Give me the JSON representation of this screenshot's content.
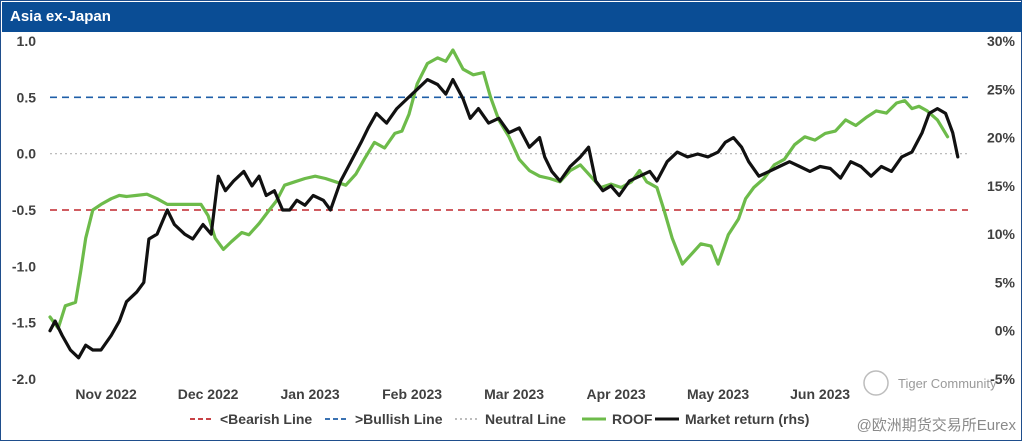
{
  "panel_title": "Asia ex-Japan",
  "watermark": {
    "community": "Tiger Community",
    "source": "@欧洲期货交易所Eurex"
  },
  "colors": {
    "header": "#0a4d95",
    "bearish": "#c0272d",
    "bullish": "#1f5fa8",
    "neutral": "#b4b4b4",
    "roof": "#6dbb4a",
    "market": "#111111"
  },
  "chart_data": {
    "type": "line",
    "title": "Asia ex-Japan",
    "x_range": [
      0,
      8.7
    ],
    "x_ticks": [
      {
        "label": "Nov 2022",
        "pos": 0.55
      },
      {
        "label": "Dec 2022",
        "pos": 1.55
      },
      {
        "label": "Jan 2023",
        "pos": 2.55
      },
      {
        "label": "Feb 2023",
        "pos": 3.55
      },
      {
        "label": "Mar 2023",
        "pos": 4.55
      },
      {
        "label": "Apr 2023",
        "pos": 5.55
      },
      {
        "label": "May 2023",
        "pos": 6.55
      },
      {
        "label": "Jun 2023",
        "pos": 7.55
      }
    ],
    "y_left": {
      "range": [
        -2.0,
        1.0
      ],
      "ticks": [
        "1.0",
        "0.5",
        "0.0",
        "-0.5",
        "-1.0",
        "-1.5",
        "-2.0"
      ],
      "tick_values": [
        1.0,
        0.5,
        0.0,
        -0.5,
        -1.0,
        -1.5,
        -2.0
      ]
    },
    "y_right": {
      "range": [
        -5,
        30
      ],
      "ticks": [
        "30%",
        "25%",
        "20%",
        "15%",
        "10%",
        "5%",
        "0%",
        "-5%"
      ],
      "tick_values": [
        30,
        25,
        20,
        15,
        10,
        5,
        0,
        -5
      ]
    },
    "reference_lines": [
      {
        "name": "<Bearish Line",
        "y": -0.5
      },
      {
        "name": ">Bullish Line",
        "y": 0.5
      },
      {
        "name": "Neutral Line",
        "y": 0.0
      }
    ],
    "series": [
      {
        "name": "ROOF",
        "axis": "left",
        "points": [
          [
            0.0,
            -1.45
          ],
          [
            0.08,
            -1.55
          ],
          [
            0.15,
            -1.35
          ],
          [
            0.25,
            -1.32
          ],
          [
            0.3,
            -1.05
          ],
          [
            0.35,
            -0.75
          ],
          [
            0.42,
            -0.5
          ],
          [
            0.5,
            -0.45
          ],
          [
            0.6,
            -0.4
          ],
          [
            0.68,
            -0.37
          ],
          [
            0.75,
            -0.38
          ],
          [
            0.85,
            -0.37
          ],
          [
            0.95,
            -0.36
          ],
          [
            1.05,
            -0.4
          ],
          [
            1.15,
            -0.45
          ],
          [
            1.25,
            -0.45
          ],
          [
            1.38,
            -0.45
          ],
          [
            1.48,
            -0.45
          ],
          [
            1.55,
            -0.55
          ],
          [
            1.62,
            -0.75
          ],
          [
            1.7,
            -0.85
          ],
          [
            1.78,
            -0.78
          ],
          [
            1.88,
            -0.7
          ],
          [
            1.95,
            -0.72
          ],
          [
            2.05,
            -0.62
          ],
          [
            2.15,
            -0.5
          ],
          [
            2.22,
            -0.42
          ],
          [
            2.3,
            -0.28
          ],
          [
            2.4,
            -0.25
          ],
          [
            2.5,
            -0.22
          ],
          [
            2.6,
            -0.2
          ],
          [
            2.7,
            -0.22
          ],
          [
            2.8,
            -0.25
          ],
          [
            2.9,
            -0.28
          ],
          [
            3.0,
            -0.18
          ],
          [
            3.08,
            -0.05
          ],
          [
            3.18,
            0.1
          ],
          [
            3.28,
            0.05
          ],
          [
            3.38,
            0.18
          ],
          [
            3.45,
            0.2
          ],
          [
            3.52,
            0.35
          ],
          [
            3.6,
            0.62
          ],
          [
            3.7,
            0.8
          ],
          [
            3.8,
            0.85
          ],
          [
            3.88,
            0.82
          ],
          [
            3.95,
            0.92
          ],
          [
            4.05,
            0.75
          ],
          [
            4.15,
            0.7
          ],
          [
            4.25,
            0.72
          ],
          [
            4.32,
            0.5
          ],
          [
            4.4,
            0.3
          ],
          [
            4.5,
            0.15
          ],
          [
            4.6,
            -0.05
          ],
          [
            4.7,
            -0.15
          ],
          [
            4.8,
            -0.2
          ],
          [
            4.9,
            -0.22
          ],
          [
            5.0,
            -0.25
          ],
          [
            5.1,
            -0.15
          ],
          [
            5.2,
            -0.1
          ],
          [
            5.3,
            -0.2
          ],
          [
            5.4,
            -0.3
          ],
          [
            5.5,
            -0.27
          ],
          [
            5.6,
            -0.3
          ],
          [
            5.7,
            -0.25
          ],
          [
            5.78,
            -0.15
          ],
          [
            5.85,
            -0.25
          ],
          [
            5.95,
            -0.3
          ],
          [
            6.02,
            -0.5
          ],
          [
            6.1,
            -0.75
          ],
          [
            6.2,
            -0.98
          ],
          [
            6.28,
            -0.9
          ],
          [
            6.38,
            -0.8
          ],
          [
            6.48,
            -0.82
          ],
          [
            6.55,
            -0.98
          ],
          [
            6.65,
            -0.72
          ],
          [
            6.75,
            -0.58
          ],
          [
            6.82,
            -0.4
          ],
          [
            6.9,
            -0.3
          ],
          [
            7.0,
            -0.22
          ],
          [
            7.1,
            -0.1
          ],
          [
            7.2,
            -0.05
          ],
          [
            7.3,
            0.08
          ],
          [
            7.4,
            0.15
          ],
          [
            7.5,
            0.12
          ],
          [
            7.6,
            0.18
          ],
          [
            7.7,
            0.2
          ],
          [
            7.8,
            0.3
          ],
          [
            7.9,
            0.25
          ],
          [
            8.0,
            0.32
          ],
          [
            8.1,
            0.38
          ],
          [
            8.2,
            0.36
          ],
          [
            8.3,
            0.45
          ],
          [
            8.38,
            0.47
          ],
          [
            8.45,
            0.4
          ],
          [
            8.52,
            0.42
          ],
          [
            8.6,
            0.38
          ],
          [
            8.7,
            0.3
          ],
          [
            8.8,
            0.15
          ]
        ]
      },
      {
        "name": "Market return (rhs)",
        "axis": "right",
        "points": [
          [
            0.0,
            0.0
          ],
          [
            0.05,
            1.0
          ],
          [
            0.12,
            -0.5
          ],
          [
            0.2,
            -2.0
          ],
          [
            0.28,
            -2.8
          ],
          [
            0.35,
            -1.5
          ],
          [
            0.42,
            -2.0
          ],
          [
            0.5,
            -2.0
          ],
          [
            0.6,
            -0.5
          ],
          [
            0.68,
            1.0
          ],
          [
            0.75,
            3.0
          ],
          [
            0.85,
            4.0
          ],
          [
            0.92,
            5.0
          ],
          [
            0.97,
            9.5
          ],
          [
            1.05,
            10.0
          ],
          [
            1.15,
            12.5
          ],
          [
            1.22,
            11.0
          ],
          [
            1.32,
            10.0
          ],
          [
            1.4,
            9.5
          ],
          [
            1.5,
            11.0
          ],
          [
            1.58,
            10.0
          ],
          [
            1.65,
            16.0
          ],
          [
            1.72,
            14.5
          ],
          [
            1.8,
            15.5
          ],
          [
            1.9,
            16.5
          ],
          [
            1.98,
            15.0
          ],
          [
            2.05,
            16.0
          ],
          [
            2.12,
            14.0
          ],
          [
            2.2,
            14.5
          ],
          [
            2.28,
            12.5
          ],
          [
            2.35,
            12.5
          ],
          [
            2.42,
            13.5
          ],
          [
            2.5,
            13.0
          ],
          [
            2.58,
            14.0
          ],
          [
            2.68,
            13.5
          ],
          [
            2.75,
            12.5
          ],
          [
            2.85,
            15.5
          ],
          [
            2.95,
            17.5
          ],
          [
            3.05,
            19.5
          ],
          [
            3.12,
            21.0
          ],
          [
            3.2,
            22.5
          ],
          [
            3.3,
            21.5
          ],
          [
            3.4,
            23.0
          ],
          [
            3.5,
            24.0
          ],
          [
            3.6,
            25.0
          ],
          [
            3.7,
            26.0
          ],
          [
            3.8,
            25.5
          ],
          [
            3.88,
            24.5
          ],
          [
            3.95,
            26.0
          ],
          [
            4.05,
            24.0
          ],
          [
            4.12,
            22.0
          ],
          [
            4.2,
            23.0
          ],
          [
            4.3,
            21.5
          ],
          [
            4.4,
            22.0
          ],
          [
            4.5,
            20.5
          ],
          [
            4.6,
            21.0
          ],
          [
            4.7,
            19.0
          ],
          [
            4.8,
            20.0
          ],
          [
            4.85,
            18.0
          ],
          [
            4.92,
            16.5
          ],
          [
            5.0,
            15.5
          ],
          [
            5.1,
            17.0
          ],
          [
            5.2,
            18.0
          ],
          [
            5.28,
            19.0
          ],
          [
            5.35,
            15.5
          ],
          [
            5.42,
            14.5
          ],
          [
            5.5,
            15.0
          ],
          [
            5.58,
            14.0
          ],
          [
            5.68,
            15.5
          ],
          [
            5.78,
            16.0
          ],
          [
            5.88,
            16.5
          ],
          [
            5.95,
            15.5
          ],
          [
            6.05,
            17.5
          ],
          [
            6.15,
            18.5
          ],
          [
            6.25,
            18.0
          ],
          [
            6.35,
            18.3
          ],
          [
            6.45,
            18.0
          ],
          [
            6.55,
            18.5
          ],
          [
            6.62,
            19.5
          ],
          [
            6.7,
            20.0
          ],
          [
            6.78,
            19.0
          ],
          [
            6.85,
            17.5
          ],
          [
            6.95,
            16.0
          ],
          [
            7.05,
            16.5
          ],
          [
            7.15,
            17.0
          ],
          [
            7.25,
            17.5
          ],
          [
            7.35,
            17.0
          ],
          [
            7.45,
            16.5
          ],
          [
            7.55,
            17.0
          ],
          [
            7.65,
            16.8
          ],
          [
            7.75,
            15.8
          ],
          [
            7.85,
            17.5
          ],
          [
            7.95,
            17.0
          ],
          [
            8.05,
            16.0
          ],
          [
            8.15,
            17.0
          ],
          [
            8.25,
            16.5
          ],
          [
            8.35,
            18.0
          ],
          [
            8.45,
            18.5
          ],
          [
            8.55,
            20.5
          ],
          [
            8.62,
            22.5
          ],
          [
            8.7,
            23.0
          ],
          [
            8.78,
            22.5
          ],
          [
            8.85,
            20.5
          ],
          [
            8.9,
            18.0
          ]
        ]
      }
    ],
    "legend": [
      {
        "label": "<Bearish Line",
        "key": "bearish"
      },
      {
        "label": ">Bullish Line",
        "key": "bullish"
      },
      {
        "label": "Neutral Line",
        "key": "neutral"
      },
      {
        "label": "ROOF",
        "key": "roof"
      },
      {
        "label": "Market return (rhs)",
        "key": "market"
      }
    ]
  }
}
